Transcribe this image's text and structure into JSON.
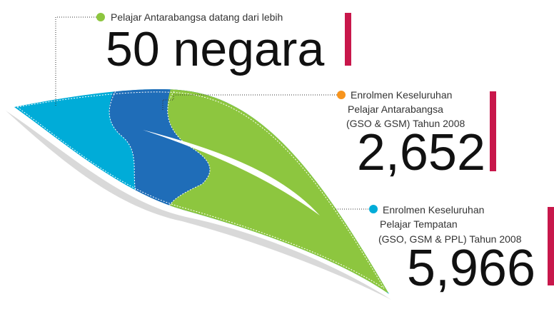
{
  "callouts": [
    {
      "lines": [
        "Pelajar Antarabangsa datang dari lebih"
      ],
      "value": "50 negara"
    },
    {
      "lines": [
        "Enrolmen Keseluruhan",
        "Pelajar Antarabangsa",
        "(GSO & GSM) Tahun 2008"
      ],
      "value": "2,652"
    },
    {
      "lines": [
        "Enrolmen Keseluruhan",
        "Pelajar Tempatan",
        "(GSO, GSM & PPL) Tahun 2008"
      ],
      "value": "5,966"
    }
  ]
}
